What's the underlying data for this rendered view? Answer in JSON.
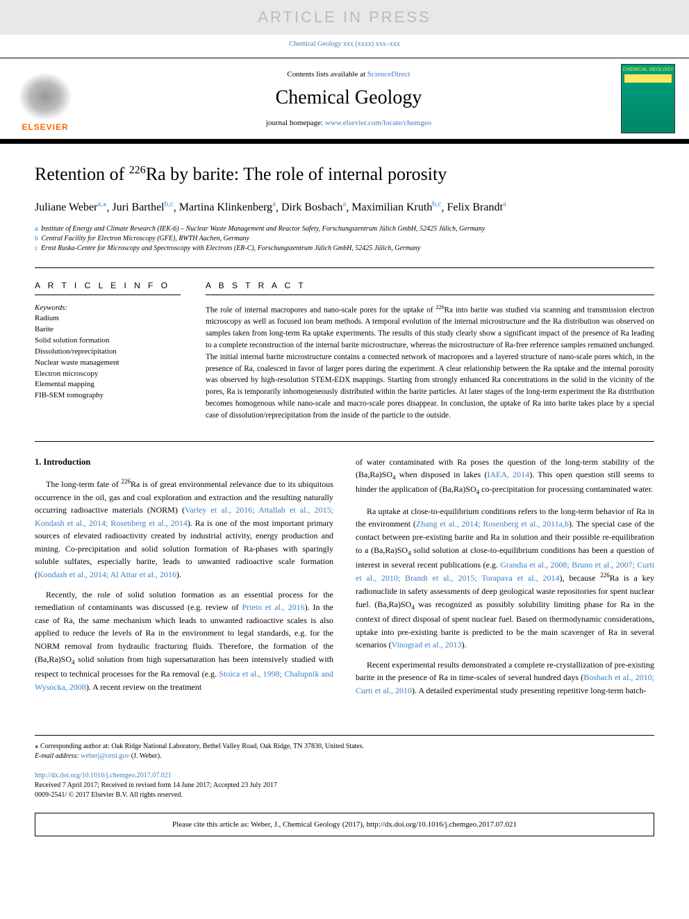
{
  "banner": {
    "text": "ARTICLE IN PRESS"
  },
  "topCitation": {
    "pre": "",
    "linkText": "Chemical Geology xxx (xxxx) xxx–xxx",
    "href": "#"
  },
  "header": {
    "contentsPre": "Contents lists available at ",
    "contentsLinkText": "ScienceDirect",
    "journalName": "Chemical Geology",
    "homepagePre": "journal homepage: ",
    "homepageLinkText": "www.elsevier.com/locate/chemgeo",
    "elsevierLabel": "ELSEVIER",
    "coverTitle": "CHEMICAL GEOLOGY"
  },
  "title": {
    "pre": "Retention of ",
    "isotope": "226",
    "post": "Ra by barite: The role of internal porosity"
  },
  "authors": [
    {
      "name": "Juliane Weber",
      "affil": "a,",
      "star": "⁎"
    },
    {
      "name": "Juri Barthel",
      "affil": "b,c"
    },
    {
      "name": "Martina Klinkenberg",
      "affil": "a"
    },
    {
      "name": "Dirk Bosbach",
      "affil": "a"
    },
    {
      "name": "Maximilian Kruth",
      "affil": "b,c"
    },
    {
      "name": "Felix Brandt",
      "affil": "a"
    }
  ],
  "affiliations": [
    {
      "mark": "a",
      "text": "Institute of Energy and Climate Research (IEK-6) – Nuclear Waste Management and Reactor Safety, Forschungszentrum Jülich GmbH, 52425 Jülich, Germany"
    },
    {
      "mark": "b",
      "text": "Central Facility for Electron Microscopy (GFE), RWTH Aachen, Germany"
    },
    {
      "mark": "c",
      "text": "Ernst Ruska-Centre for Microscopy and Spectroscopy with Electrons (ER-C), Forschungszentrum Jülich GmbH, 52425 Jülich, Germany"
    }
  ],
  "articleInfo": {
    "heading": "A R T I C L E  I N F O",
    "keywordsLabel": "Keywords:",
    "keywords": [
      "Radium",
      "Barite",
      "Solid solution formation",
      "Dissolution/reprecipitation",
      "Nuclear waste management",
      "Electron microscopy",
      "Elemental mapping",
      "FIB-SEM tomography"
    ]
  },
  "abstract": {
    "heading": "A B S T R A C T",
    "text_p1": "The role of internal macropores and nano-scale pores for the uptake of ",
    "iso": "226",
    "text_p2": "Ra into barite was studied via scanning and transmission electron microscopy as well as focused ion beam methods. A temporal evolution of the internal microstructure and the Ra distribution was observed on samples taken from long-term Ra uptake experiments. The results of this study clearly show a significant impact of the presence of Ra leading to a complete reconstruction of the internal barite microstructure, whereas the microstructure of Ra-free reference samples remained unchanged. The initial internal barite microstructure contains a connected network of macropores and a layered structure of nano-scale pores which, in the presence of Ra, coalesced in favor of larger pores during the experiment. A clear relationship between the Ra uptake and the internal porosity was observed by high-resolution STEM-EDX mappings. Starting from strongly enhanced Ra concentrations in the solid in the vicinity of the pores, Ra is temporarily inhomogeneously distributed within the barite particles. At later stages of the long-term experiment the Ra distribution becomes homogenous while nano-scale and macro-scale pores disappear. In conclusion, the uptake of Ra into barite takes place by a special case of dissolution/reprecipitation from the inside of the particle to the outside."
  },
  "body": {
    "heading1": "1. Introduction",
    "left": {
      "p1_a": "The long-term fate of ",
      "p1_iso": "226",
      "p1_b": "Ra is of great environmental relevance due to its ubiquitous occurrence in the oil, gas and coal exploration and extraction and the resulting naturally occurring radioactive materials (NORM) (",
      "p1_link1": "Varley et al., 2016; Attallah et al., 2015; Kondash et al., 2014; Rosenberg et al., 2014",
      "p1_c": "). Ra is one of the most important primary sources of elevated radioactivity created by industrial activity, energy production and mining. Co-precipitation and solid solution formation of Ra-phases with sparingly soluble sulfates, especially barite, leads to unwanted radioactive scale formation (",
      "p1_link2": "Kondash et al., 2014; Al Attar et al., 2016",
      "p1_d": ").",
      "p2_a": "Recently, the role of solid solution formation as an essential process for the remediation of contaminants was discussed (e.g. review of ",
      "p2_link1": "Prieto et al., 2016",
      "p2_b": "). In the case of Ra, the same mechanism which leads to unwanted radioactive scales is also applied to reduce the levels of Ra in the environment to legal standards, e.g. for the NORM removal from hydraulic fracturing fluids. Therefore, the formation of the (Ba,Ra)SO",
      "p2_sub": "4",
      "p2_c": " solid solution from high supersaturation has been intensively studied with respect to technical processes for the Ra removal (e.g. ",
      "p2_link2": "Stoica et al., 1998; Chalupnik and Wysocka, 2008",
      "p2_d": "). A recent review on the treatment"
    },
    "right": {
      "p1_a": "of water contaminated with Ra poses the question of the long-term stability of the (Ba,Ra)SO",
      "p1_sub1": "4",
      "p1_b": " when disposed in lakes (",
      "p1_link1": "IAEA, 2014",
      "p1_c": "). This open question still seems to hinder the application of (Ba,Ra)SO",
      "p1_sub2": "4",
      "p1_d": " co-precipitation for processing contaminated water.",
      "p2_a": "Ra uptake at close-to-equilibrium conditions refers to the long-term behavior of Ra in the environment (",
      "p2_link1": "Zhang et al., 2014; Rosenberg et al., 2011a,b",
      "p2_b": "). The special case of the contact between pre-existing barite and Ra in solution and their possible re-equilibration to a (Ba,Ra)SO",
      "p2_sub1": "4",
      "p2_c": " solid solution at close-to-equilibrium conditions has been a question of interest in several recent publications (e.g. ",
      "p2_link2": "Grandia et al., 2008; Bruno et al., 2007; Curti et al., 2010; Brandt et al., 2015; Torapava et al., 2014",
      "p2_d": "), because ",
      "p2_iso": "226",
      "p2_e": "Ra is a key radionuclide in safety assessments of deep geological waste repositories for spent nuclear fuel. (Ba,Ra)SO",
      "p2_sub2": "4",
      "p2_f": " was recognized as possibly solubility limiting phase for Ra in the context of direct disposal of spent nuclear fuel. Based on thermodynamic considerations, uptake into pre-existing barite is predicted to be the main scavenger of Ra in several scenarios (",
      "p2_link3": "Vinograd et al., 2013",
      "p2_g": ").",
      "p3_a": "Recent experimental results demonstrated a complete re-crystallization of pre-existing barite in the presence of Ra in time-scales of several hundred days (",
      "p3_link1": "Bosbach et al., 2010; Curti et al., 2010",
      "p3_b": "). A detailed experimental study presenting repetitive long-term batch-"
    }
  },
  "footer": {
    "correspMark": "⁎",
    "correspText": " Corresponding author at: Oak Ridge National Laboratory, Bethel Valley Road, Oak Ridge, TN 37830, United States.",
    "emailLabel": "E-mail address: ",
    "email": "weberj@ornl.gov",
    "emailSuffix": " (J. Weber).",
    "doi": "http://dx.doi.org/10.1016/j.chemgeo.2017.07.021",
    "received": "Received 7 April 2017; Received in revised form 14 June 2017; Accepted 23 July 2017",
    "issn": "0009-2541/ © 2017 Elsevier B.V. All rights reserved."
  },
  "citeBox": {
    "text": "Please cite this article as: Weber, J., Chemical Geology (2017), http://dx.doi.org/10.1016/j.chemgeo.2017.07.021"
  },
  "style": {
    "linkColor": "#3a7fc4",
    "elsevierOrange": "#ff6600",
    "bannerBg": "#e8e8e8",
    "bannerTextColor": "#bbbbbb",
    "coverBg": "#00a080",
    "coverTitleColor": "#fff200"
  }
}
